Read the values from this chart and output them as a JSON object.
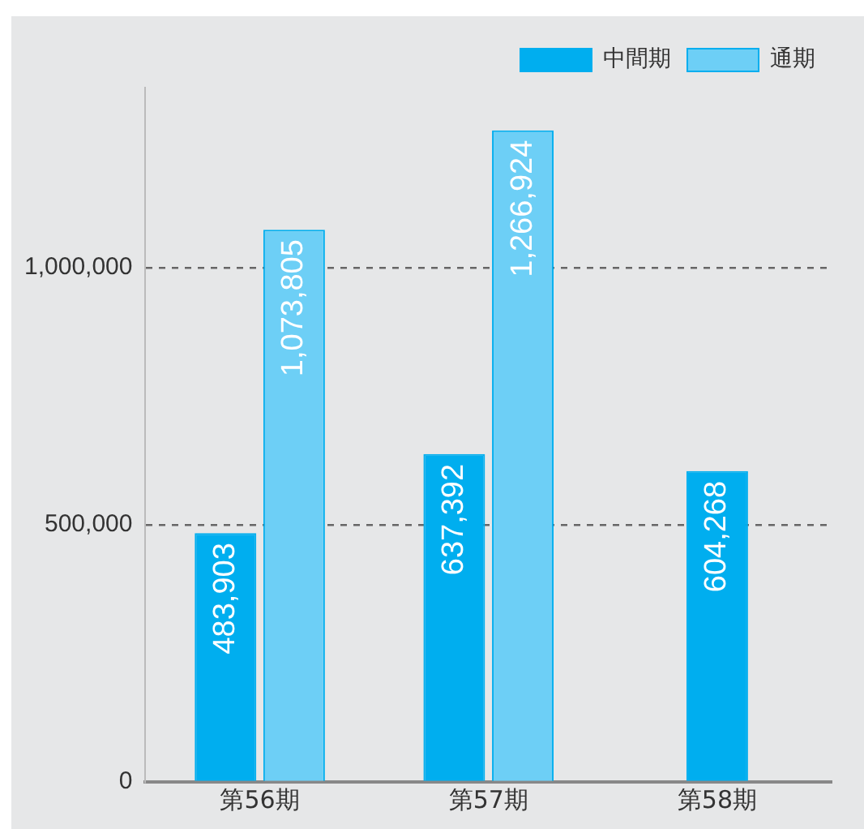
{
  "chart_data": {
    "type": "bar",
    "categories": [
      "第56期",
      "第57期",
      "第58期"
    ],
    "series": [
      {
        "name": "中間期",
        "color": "#00aeef",
        "values": [
          483903,
          637392,
          604268
        ],
        "value_labels": [
          "483,903",
          "637,392",
          "604,268"
        ]
      },
      {
        "name": "通期",
        "color": "#6dcff6",
        "values": [
          1073805,
          1266924,
          null
        ],
        "value_labels": [
          "1,073,805",
          "1,266,924",
          null
        ]
      }
    ],
    "ylim": [
      0,
      1350000
    ],
    "yticks": [
      0,
      {
        "value": 500000,
        "label": "500,000"
      },
      {
        "value": 1000000,
        "label": "1,000,000"
      }
    ],
    "grid": "y",
    "legend": "top right"
  }
}
